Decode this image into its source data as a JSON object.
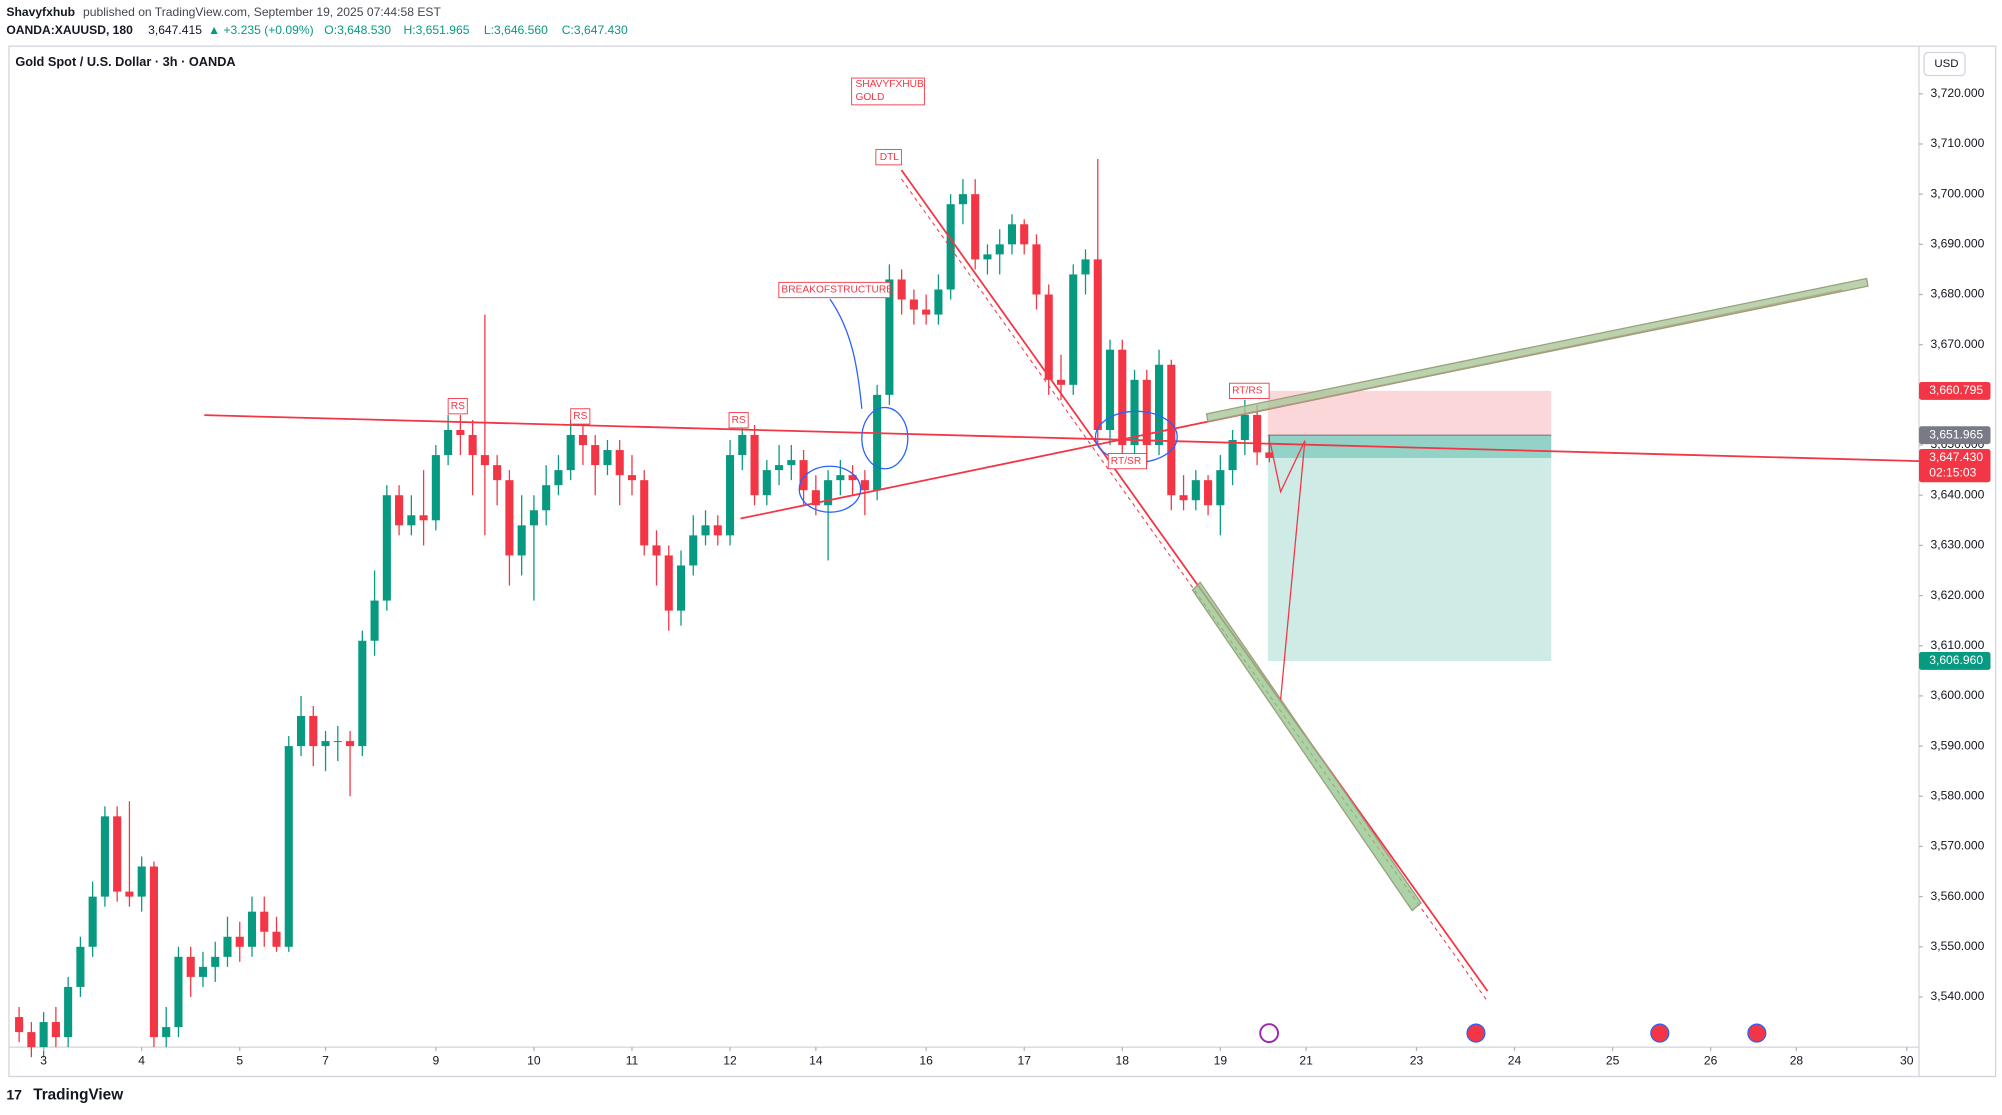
{
  "header": {
    "author": "Shavyfxhub",
    "published": "published on TradingView.com, September 19, 2025 07:44:58 EST",
    "symbol": "OANDA:XAUUSD, 180",
    "price": "3,647.415",
    "change": "▲ +3.235 (+0.09%)",
    "o": "O:3,648.530",
    "h": "H:3,651.965",
    "l": "L:3,646.560",
    "c": "C:3,647.430"
  },
  "footer": {
    "brand": "TradingView"
  },
  "chart_data": {
    "type": "candlestick",
    "title": "Gold Spot / U.S. Dollar · 3h · OANDA",
    "currency": "USD",
    "up_color": "#089981",
    "down_color": "#f23645",
    "grid": false,
    "annotations": {
      "tag": "SHAVYFXHUB",
      "tag2": "GOLD",
      "dtl": "DTL",
      "bos": "BREAKOFSTRUCTURE",
      "rs1": "RS",
      "rs2": "RS",
      "rs3": "RS",
      "rtsr": "RT/SR",
      "rtrs": "RT/RS"
    },
    "ylim": [
      3530,
      3729.5
    ],
    "yticks": [
      {
        "value": 3540,
        "label": "3,540.000"
      },
      {
        "value": 3550,
        "label": "3,550.000"
      },
      {
        "value": 3560,
        "label": "3,560.000"
      },
      {
        "value": 3570,
        "label": "3,570.000"
      },
      {
        "value": 3580,
        "label": "3,580.000"
      },
      {
        "value": 3590,
        "label": "3,590.000"
      },
      {
        "value": 3600,
        "label": "3,600.000"
      },
      {
        "value": 3610,
        "label": "3,610.000"
      },
      {
        "value": 3620,
        "label": "3,620.000"
      },
      {
        "value": 3630,
        "label": "3,630.000"
      },
      {
        "value": 3640,
        "label": "3,640.000"
      },
      {
        "value": 3650,
        "label": "3,650.000"
      },
      {
        "value": 3660,
        "label": "3,660.000"
      },
      {
        "value": 3670,
        "label": "3,670.000"
      },
      {
        "value": 3680,
        "label": "3,680.000"
      },
      {
        "value": 3690,
        "label": "3,690.000"
      },
      {
        "value": 3700,
        "label": "3,700.000"
      },
      {
        "value": 3710,
        "label": "3,710.000"
      },
      {
        "value": 3720,
        "label": "3,720.000"
      }
    ],
    "xlim": [
      -0.83,
      155
    ],
    "xticks": [
      {
        "value": 2,
        "label": "3"
      },
      {
        "value": 10,
        "label": "4"
      },
      {
        "value": 18,
        "label": "5"
      },
      {
        "value": 25,
        "label": "7"
      },
      {
        "value": 34,
        "label": "9"
      },
      {
        "value": 42,
        "label": "10"
      },
      {
        "value": 50,
        "label": "11"
      },
      {
        "value": 58,
        "label": "12"
      },
      {
        "value": 65,
        "label": "14"
      },
      {
        "value": 74,
        "label": "16"
      },
      {
        "value": 82,
        "label": "17"
      },
      {
        "value": 90,
        "label": "18"
      },
      {
        "value": 98,
        "label": "19"
      },
      {
        "value": 105,
        "label": "21"
      },
      {
        "value": 114,
        "label": "23"
      },
      {
        "value": 122,
        "label": "24"
      },
      {
        "value": 130,
        "label": "25"
      },
      {
        "value": 138,
        "label": "26"
      },
      {
        "value": 145,
        "label": "28"
      },
      {
        "value": 154,
        "label": "30"
      }
    ],
    "price_labels": [
      {
        "value": 3660.795,
        "label": "3,660.795",
        "color": "#f23645"
      },
      {
        "value": 3651.965,
        "label": "3,651.965",
        "color": "#787b86"
      },
      {
        "value": 3647.43,
        "label": "3,647.430",
        "color": "#f23645",
        "countdown": "02:15:03"
      },
      {
        "value": 3606.96,
        "label": "3,606.960",
        "color": "#089981"
      }
    ],
    "ohlc": [
      [
        3536,
        3538,
        3531,
        3533
      ],
      [
        3533,
        3535,
        3528,
        3530
      ],
      [
        3530,
        3537,
        3528,
        3535
      ],
      [
        3535,
        3538,
        3530,
        3532
      ],
      [
        3532,
        3544,
        3530,
        3542
      ],
      [
        3542,
        3552,
        3540,
        3550
      ],
      [
        3550,
        3563,
        3548,
        3560
      ],
      [
        3560,
        3578,
        3558,
        3576
      ],
      [
        3576,
        3578,
        3559,
        3561
      ],
      [
        3561,
        3579,
        3558,
        3560
      ],
      [
        3560,
        3568,
        3557,
        3566
      ],
      [
        3566,
        3567,
        3530,
        3532
      ],
      [
        3532,
        3538,
        3530,
        3534
      ],
      [
        3534,
        3550,
        3532,
        3548
      ],
      [
        3548,
        3550,
        3540,
        3544
      ],
      [
        3544,
        3549,
        3542,
        3546
      ],
      [
        3546,
        3551,
        3543,
        3548
      ],
      [
        3548,
        3556,
        3546,
        3552
      ],
      [
        3552,
        3555,
        3547,
        3550
      ],
      [
        3550,
        3560,
        3548,
        3557
      ],
      [
        3557,
        3560,
        3550,
        3553
      ],
      [
        3553,
        3556,
        3549,
        3550
      ],
      [
        3550,
        3592,
        3549,
        3590
      ],
      [
        3590,
        3600,
        3588,
        3596
      ],
      [
        3596,
        3598,
        3586,
        3590
      ],
      [
        3590,
        3593,
        3585,
        3591
      ],
      [
        3591,
        3594,
        3587,
        3591
      ],
      [
        3591,
        3593,
        3580,
        3590
      ],
      [
        3590,
        3613,
        3588,
        3611
      ],
      [
        3611,
        3625,
        3608,
        3619
      ],
      [
        3619,
        3642,
        3617,
        3640
      ],
      [
        3640,
        3642,
        3632,
        3634
      ],
      [
        3634,
        3640,
        3632,
        3636
      ],
      [
        3636,
        3645,
        3630,
        3635
      ],
      [
        3635,
        3650,
        3633,
        3648
      ],
      [
        3648,
        3656,
        3646,
        3653
      ],
      [
        3653,
        3656,
        3648,
        3652
      ],
      [
        3652,
        3655,
        3640,
        3648
      ],
      [
        3648,
        3676,
        3632,
        3646
      ],
      [
        3646,
        3648,
        3638,
        3643
      ],
      [
        3643,
        3645,
        3622,
        3628
      ],
      [
        3628,
        3640,
        3624,
        3634
      ],
      [
        3634,
        3640,
        3619,
        3637
      ],
      [
        3637,
        3646,
        3634,
        3642
      ],
      [
        3642,
        3648,
        3640,
        3645
      ],
      [
        3645,
        3655,
        3643,
        3652
      ],
      [
        3652,
        3655,
        3646,
        3650
      ],
      [
        3650,
        3652,
        3640,
        3646
      ],
      [
        3646,
        3651,
        3644,
        3649
      ],
      [
        3649,
        3651,
        3638,
        3644
      ],
      [
        3644,
        3648,
        3640,
        3643
      ],
      [
        3643,
        3645,
        3628,
        3630
      ],
      [
        3630,
        3633,
        3622,
        3628
      ],
      [
        3628,
        3630,
        3613,
        3617
      ],
      [
        3617,
        3629,
        3614,
        3626
      ],
      [
        3626,
        3636,
        3624,
        3632
      ],
      [
        3632,
        3637,
        3630,
        3634
      ],
      [
        3634,
        3636,
        3630,
        3632
      ],
      [
        3632,
        3651,
        3630,
        3648
      ],
      [
        3648,
        3655,
        3645,
        3652
      ],
      [
        3652,
        3654,
        3638,
        3640
      ],
      [
        3640,
        3647,
        3638,
        3645
      ],
      [
        3645,
        3650,
        3642,
        3646
      ],
      [
        3646,
        3650,
        3643,
        3647
      ],
      [
        3647,
        3649,
        3638,
        3641
      ],
      [
        3641,
        3644,
        3636,
        3638
      ],
      [
        3638,
        3645,
        3627,
        3643
      ],
      [
        3643,
        3647,
        3640,
        3644
      ],
      [
        3644,
        3646,
        3640,
        3643
      ],
      [
        3643,
        3645,
        3636,
        3641
      ],
      [
        3641,
        3662,
        3639,
        3660
      ],
      [
        3660,
        3686,
        3658,
        3683
      ],
      [
        3683,
        3685,
        3676,
        3679
      ],
      [
        3679,
        3681,
        3674,
        3677
      ],
      [
        3677,
        3680,
        3674,
        3676
      ],
      [
        3676,
        3684,
        3674,
        3681
      ],
      [
        3681,
        3700,
        3679,
        3698
      ],
      [
        3698,
        3703,
        3694,
        3700
      ],
      [
        3700,
        3703,
        3685,
        3687
      ],
      [
        3687,
        3690,
        3684,
        3688
      ],
      [
        3688,
        3693,
        3684,
        3690
      ],
      [
        3690,
        3696,
        3688,
        3694
      ],
      [
        3694,
        3695,
        3688,
        3690
      ],
      [
        3690,
        3692,
        3677,
        3680
      ],
      [
        3680,
        3682,
        3660,
        3663
      ],
      [
        3663,
        3668,
        3659,
        3662
      ],
      [
        3662,
        3686,
        3660,
        3684
      ],
      [
        3684,
        3689,
        3680,
        3687
      ],
      [
        3687,
        3707,
        3650,
        3653
      ],
      [
        3653,
        3671,
        3650,
        3669
      ],
      [
        3669,
        3671,
        3647,
        3650
      ],
      [
        3650,
        3665,
        3648,
        3663
      ],
      [
        3663,
        3665,
        3646,
        3650
      ],
      [
        3650,
        3669,
        3648,
        3666
      ],
      [
        3666,
        3667,
        3637,
        3640
      ],
      [
        3640,
        3644,
        3637,
        3639
      ],
      [
        3639,
        3645,
        3637,
        3643
      ],
      [
        3643,
        3644,
        3636,
        3638
      ],
      [
        3638,
        3648,
        3632,
        3645
      ],
      [
        3645,
        3653,
        3642,
        3651
      ],
      [
        3651,
        3659,
        3648,
        3656
      ],
      [
        3656,
        3658,
        3646,
        3648.53
      ],
      [
        3648.53,
        3651.965,
        3646.56,
        3647.43
      ]
    ]
  }
}
